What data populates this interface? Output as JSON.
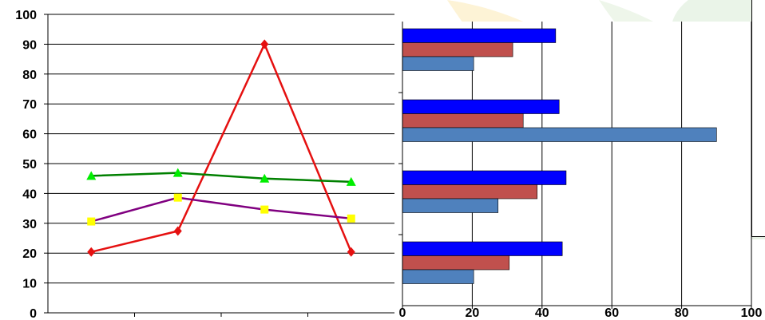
{
  "chart_data": [
    {
      "type": "line",
      "categories": [
        "",
        "",
        "",
        ""
      ],
      "ylim": [
        0,
        100
      ],
      "yticks": [
        "0",
        "10",
        "20",
        "30",
        "40",
        "50",
        "60",
        "70",
        "80",
        "90",
        "100"
      ],
      "grid": true,
      "series": [
        {
          "color": "#e51010",
          "marker": "diamond",
          "values": [
            20.4,
            27.4,
            90,
            20.4
          ]
        },
        {
          "color": "#800080",
          "marker": "square",
          "markerColor": "#ffff00",
          "values": [
            30.6,
            38.6,
            34.6,
            31.6
          ]
        },
        {
          "color": "#008000",
          "marker": "triangle",
          "markerColor": "#00ee00",
          "values": [
            45.9,
            46.9,
            45,
            43.9
          ]
        }
      ]
    },
    {
      "type": "bar",
      "orientation": "horizontal",
      "categories": [
        "",
        "",
        "",
        ""
      ],
      "xlim": [
        0,
        100
      ],
      "xticks": [
        "0",
        "20",
        "40",
        "60",
        "80",
        "100"
      ],
      "grid": true,
      "series": [
        {
          "color": "#0000ff",
          "values": [
            45.8,
            46.9,
            44.9,
            43.9
          ]
        },
        {
          "color": "#c0504d",
          "values": [
            30.6,
            38.6,
            34.6,
            31.6
          ]
        },
        {
          "color": "#4f81bd",
          "values": [
            20.4,
            27.4,
            90,
            20.4
          ]
        }
      ]
    }
  ]
}
